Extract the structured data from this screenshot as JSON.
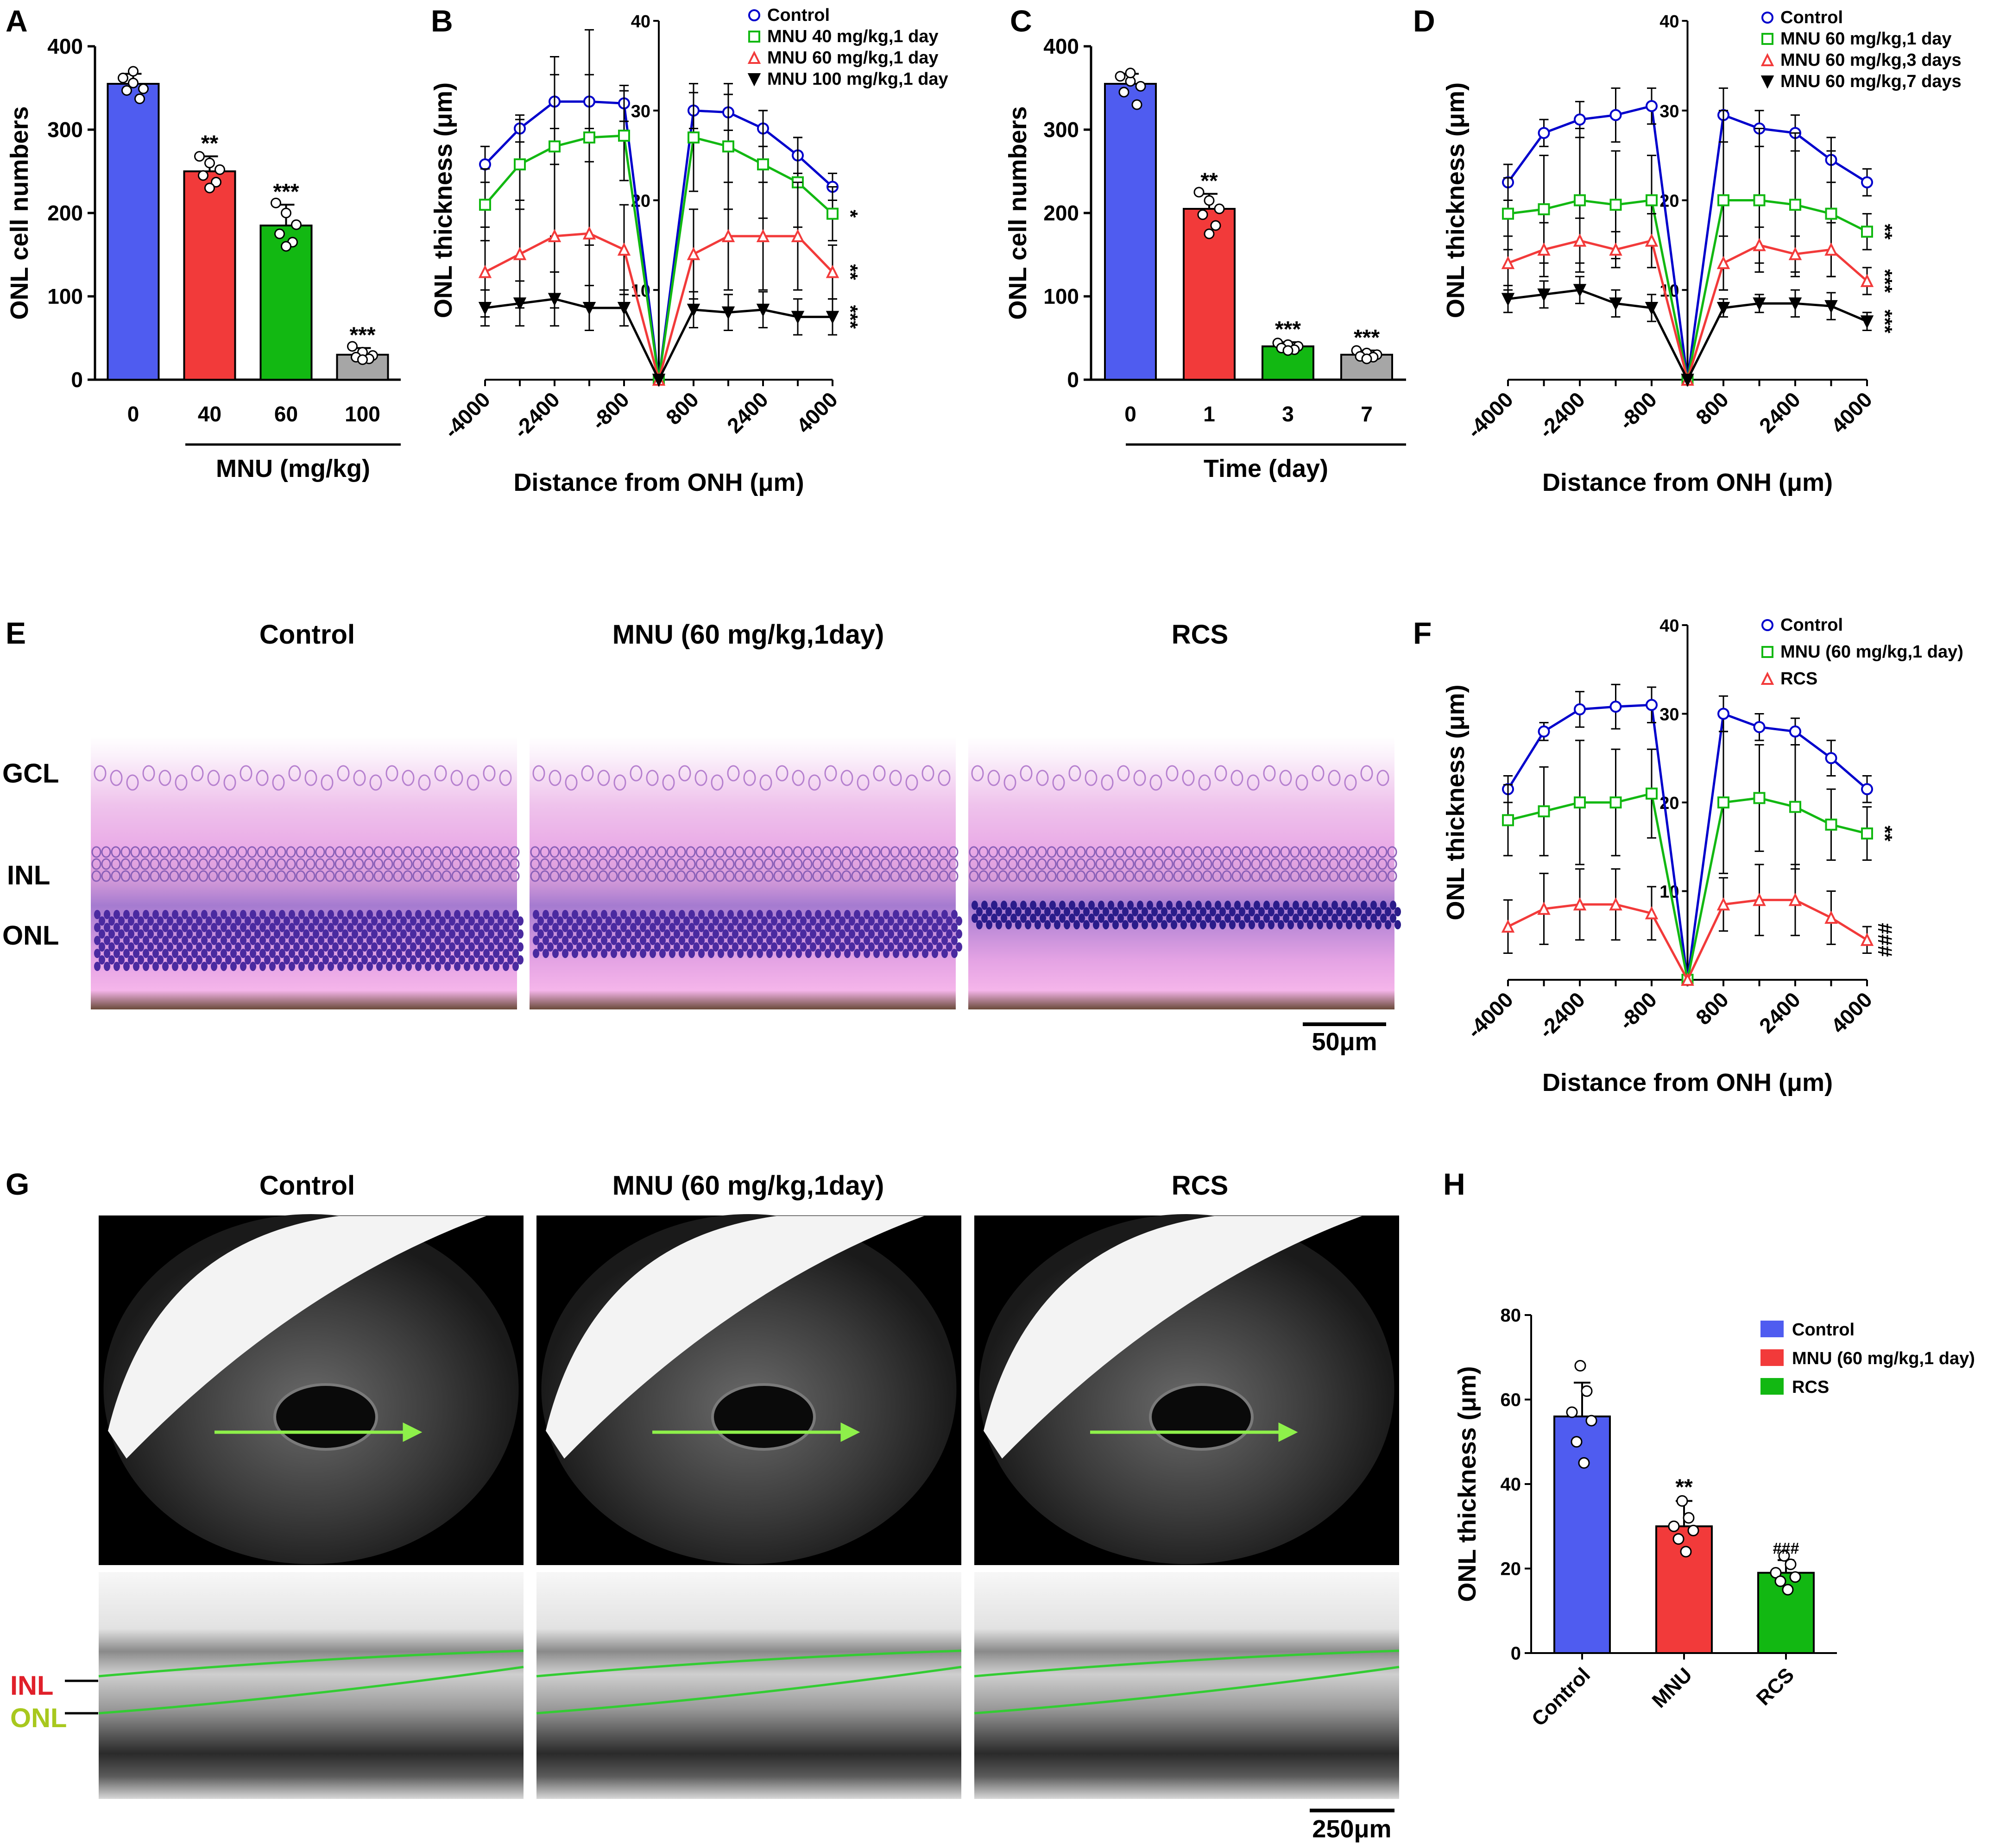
{
  "panels": {
    "A": {
      "label": "A",
      "ylabel": "ONL cell numbers",
      "xlabel": "MNU (mg/kg)"
    },
    "B": {
      "label": "B",
      "ylabel": "ONL thickness (μm)",
      "xlabel": "Distance from ONH (μm)"
    },
    "C": {
      "label": "C",
      "ylabel": "ONL cell numbers",
      "xlabel": "Time (day)"
    },
    "D": {
      "label": "D",
      "ylabel": "ONL thickness (μm)",
      "xlabel": "Distance from ONH (μm)"
    },
    "E": {
      "label": "E",
      "titles": [
        "Control",
        "MNU (60 mg/kg,1day)",
        "RCS"
      ],
      "layers": [
        "GCL",
        "INL",
        "ONL"
      ],
      "scale": "50μm"
    },
    "F": {
      "label": "F",
      "ylabel": "ONL thickness (μm)",
      "xlabel": "Distance from ONH (μm)"
    },
    "G": {
      "label": "G",
      "titles": [
        "Control",
        "MNU (60 mg/kg,1day)",
        "RCS"
      ],
      "layers": [
        "INL",
        "ONL"
      ],
      "scale": "250μm"
    },
    "H": {
      "label": "H",
      "ylabel": "ONL thickness (μm)"
    }
  },
  "colors": {
    "blue": "#4f5cf0",
    "red": "#f23a3a",
    "green": "#12b812",
    "gray": "#a6a6a6",
    "black": "#000000",
    "line_blue": "#0000cc",
    "line_green": "#12b812",
    "line_red": "#f23a3a",
    "inl_label": "#e0202a",
    "onl_label": "#a8c81e",
    "oct_line": "#33cc33",
    "arrow": "#8ef04a"
  },
  "icons": {
    "retina_histology": "he-stained-retina-section",
    "oct_fundus": "oct-fundus-image",
    "oct_bscan": "oct-b-scan"
  },
  "chart_data": [
    {
      "id": "A",
      "type": "bar",
      "categories": [
        "0",
        "40",
        "60",
        "100"
      ],
      "values": [
        355,
        250,
        185,
        30
      ],
      "errors": [
        12,
        18,
        25,
        8
      ],
      "points": [
        [
          362,
          356,
          349,
          347,
          337,
          370
        ],
        [
          268,
          260,
          252,
          245,
          237,
          230
        ],
        [
          212,
          200,
          186,
          175,
          165,
          160
        ],
        [
          40,
          33,
          29,
          27,
          25,
          24
        ]
      ],
      "significance": [
        "",
        "**",
        "***",
        "***"
      ],
      "colors": [
        "#4f5cf0",
        "#f23a3a",
        "#12b812",
        "#a6a6a6"
      ],
      "ylabel": "ONL cell numbers",
      "xlabel": "MNU (mg/kg)",
      "ylim": [
        0,
        400
      ],
      "yticks": [
        "0",
        "100",
        "200",
        "300",
        "400"
      ]
    },
    {
      "id": "B",
      "type": "line",
      "x": [
        -4000,
        -3200,
        -2400,
        -1600,
        -800,
        0,
        800,
        1600,
        2400,
        3200,
        4000
      ],
      "xticks": [
        "-4000",
        "-2400",
        "-800",
        "800",
        "2400",
        "4000"
      ],
      "ylim": [
        0,
        40
      ],
      "yticks": [
        "10",
        "20",
        "30",
        "40"
      ],
      "ylabel": "ONL thickness (μm)",
      "xlabel": "Distance from ONH (μm)",
      "series": [
        {
          "name": "Control",
          "color": "#0000cc",
          "marker": "circle",
          "values": [
            24,
            28,
            31,
            31,
            30.8,
            0,
            30,
            29.8,
            28,
            25,
            21.5
          ],
          "errors": [
            2,
            1.5,
            3,
            3,
            2,
            0,
            2,
            2,
            2,
            2,
            1.5
          ],
          "sig": ""
        },
        {
          "name": "MNU 40 mg/kg,1 day",
          "color": "#12b812",
          "marker": "square",
          "values": [
            19.5,
            24,
            26,
            27,
            27.2,
            0,
            27,
            26,
            24,
            22,
            18.5
          ],
          "errors": [
            4,
            5,
            10,
            12,
            5,
            0,
            6,
            7,
            6,
            5,
            3
          ],
          "sig": "*"
        },
        {
          "name": "MNU 60 mg/kg,1 day",
          "color": "#f23a3a",
          "marker": "triangle",
          "values": [
            12,
            14,
            16,
            16.3,
            14.5,
            0,
            14,
            16,
            16,
            16,
            12
          ],
          "errors": [
            5,
            6,
            8,
            8,
            5,
            0,
            5,
            6,
            6,
            6,
            3
          ],
          "sig": "**"
        },
        {
          "name": "MNU 100 mg/kg,1 day",
          "color": "#000000",
          "marker": "triangle-down",
          "values": [
            8,
            8.5,
            9,
            8,
            8,
            0,
            7.8,
            7.5,
            7.8,
            7,
            7
          ],
          "errors": [
            2,
            2.5,
            3,
            2.5,
            2,
            0,
            2,
            2,
            2,
            2,
            2
          ],
          "sig": "***"
        }
      ]
    },
    {
      "id": "C",
      "type": "bar",
      "categories": [
        "0",
        "1",
        "3",
        "7"
      ],
      "values": [
        355,
        205,
        40,
        30
      ],
      "errors": [
        12,
        18,
        5,
        5
      ],
      "points": [
        [
          364,
          358,
          352,
          345,
          330,
          368
        ],
        [
          225,
          215,
          205,
          198,
          185,
          175
        ],
        [
          44,
          42,
          40,
          38,
          36,
          35
        ],
        [
          35,
          32,
          30,
          28,
          27,
          25
        ]
      ],
      "significance": [
        "",
        "**",
        "***",
        "***"
      ],
      "colors": [
        "#4f5cf0",
        "#f23a3a",
        "#12b812",
        "#a6a6a6"
      ],
      "ylabel": "ONL cell numbers",
      "xlabel": "Time (day)",
      "ylim": [
        0,
        400
      ],
      "yticks": [
        "0",
        "100",
        "200",
        "300",
        "400"
      ]
    },
    {
      "id": "D",
      "type": "line",
      "x": [
        -4000,
        -3200,
        -2400,
        -1600,
        -800,
        0,
        800,
        1600,
        2400,
        3200,
        4000
      ],
      "xticks": [
        "-4000",
        "-2400",
        "-800",
        "800",
        "2400",
        "4000"
      ],
      "ylim": [
        0,
        40
      ],
      "yticks": [
        "10",
        "20",
        "30",
        "40"
      ],
      "ylabel": "ONL thickness (μm)",
      "xlabel": "Distance from ONH (μm)",
      "series": [
        {
          "name": "Control",
          "color": "#0000cc",
          "marker": "circle",
          "values": [
            22,
            27.5,
            29,
            29.5,
            30.5,
            0,
            29.5,
            28,
            27.5,
            24.5,
            22
          ],
          "errors": [
            2,
            1.5,
            2,
            3,
            2,
            0,
            3,
            2,
            2,
            2.5,
            1.5
          ],
          "sig": ""
        },
        {
          "name": "MNU 60 mg/kg,1 day",
          "color": "#12b812",
          "marker": "square",
          "values": [
            18.5,
            19,
            20,
            19.5,
            20,
            0,
            20,
            20,
            19.5,
            18.5,
            16.5
          ],
          "errors": [
            4,
            6,
            8,
            6,
            5,
            0,
            10,
            8,
            8,
            7,
            2
          ],
          "sig": "**"
        },
        {
          "name": "MNU 60 mg/kg,3 days",
          "color": "#f23a3a",
          "marker": "triangle",
          "values": [
            13,
            14.5,
            15.5,
            14.5,
            15.5,
            0,
            13,
            15,
            14,
            14.5,
            11
          ],
          "errors": [
            3,
            3,
            2.5,
            2,
            3,
            0,
            3,
            2,
            2,
            3,
            1.5
          ],
          "sig": "***"
        },
        {
          "name": "MNU 60 mg/kg,7 days",
          "color": "#000000",
          "marker": "triangle-down",
          "values": [
            9,
            9.5,
            10,
            8.5,
            8,
            0,
            8,
            8.5,
            8.5,
            8.2,
            6.5
          ],
          "errors": [
            1.5,
            1.5,
            1.5,
            1.5,
            1.5,
            0,
            1,
            1,
            1.5,
            1.5,
            1
          ],
          "sig": "***"
        }
      ]
    },
    {
      "id": "F",
      "type": "line",
      "x": [
        -4000,
        -3200,
        -2400,
        -1600,
        -800,
        0,
        800,
        1600,
        2400,
        3200,
        4000
      ],
      "xticks": [
        "-4000",
        "-2400",
        "-800",
        "800",
        "2400",
        "4000"
      ],
      "ylim": [
        0,
        40
      ],
      "yticks": [
        "10",
        "20",
        "30",
        "40"
      ],
      "ylabel": "ONL thickness (μm)",
      "xlabel": "Distance from ONH (μm)",
      "series": [
        {
          "name": "Control",
          "color": "#0000cc",
          "marker": "circle",
          "values": [
            21.5,
            28,
            30.5,
            30.8,
            31,
            0,
            30,
            28.5,
            28,
            25,
            21.5
          ],
          "errors": [
            1.5,
            1,
            2,
            2.5,
            2,
            0,
            2,
            1.5,
            1.5,
            2,
            1.5
          ],
          "sig": ""
        },
        {
          "name": "MNU (60 mg/kg,1 day)",
          "color": "#12b812",
          "marker": "square",
          "values": [
            18,
            19,
            20,
            20,
            21,
            0,
            20,
            20.5,
            19.5,
            17.5,
            16.5
          ],
          "errors": [
            4,
            5,
            7,
            6,
            5,
            0,
            8,
            6,
            7,
            4,
            3
          ],
          "sig": "**"
        },
        {
          "name": "RCS",
          "color": "#f23a3a",
          "marker": "triangle",
          "values": [
            6,
            8,
            8.5,
            8.5,
            7.5,
            0,
            8.5,
            9,
            9,
            7,
            4.5
          ],
          "errors": [
            3,
            4,
            4,
            4,
            3,
            0,
            3,
            4,
            4,
            3,
            1.5
          ],
          "sig": "###"
        }
      ]
    },
    {
      "id": "H",
      "type": "bar",
      "categories": [
        "Control",
        "MNU",
        "RCS"
      ],
      "values": [
        56,
        30,
        19
      ],
      "errors": [
        8,
        6,
        3
      ],
      "points": [
        [
          68,
          62,
          57,
          55,
          50,
          45
        ],
        [
          36,
          32,
          30,
          29,
          27,
          24
        ],
        [
          23,
          21,
          19,
          18,
          17,
          15
        ]
      ],
      "significance": [
        "",
        "**",
        "###"
      ],
      "colors": [
        "#4f5cf0",
        "#f23a3a",
        "#12b812"
      ],
      "legend": [
        "Control",
        "MNU (60 mg/kg,1 day)",
        "RCS"
      ],
      "ylabel": "ONL thickness (μm)",
      "ylim": [
        0,
        80
      ],
      "yticks": [
        "0",
        "20",
        "40",
        "60",
        "80"
      ]
    }
  ]
}
